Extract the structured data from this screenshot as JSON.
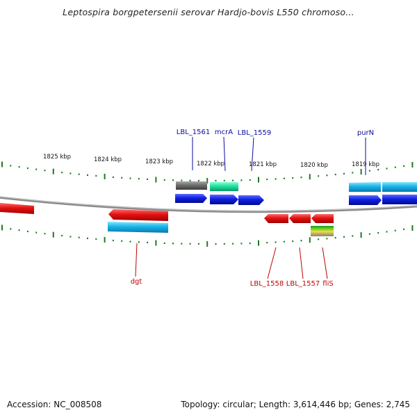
{
  "title": "Leptospira borgpetersenii serovar Hardjo-bovis L550 chromoso...",
  "footer": {
    "accession": "Accession: NC_008508",
    "topology": "Topology: circular; Length: 3,614,446 bp; Genes: 2,745"
  },
  "colors": {
    "backbone": "#8a8a8a",
    "tick": "#1e7a1e",
    "label_top": "#0a0aa0",
    "label_bottom": "#c00000",
    "red_gene": "#e31212",
    "blue_gene": "#1020e0",
    "cyan_gene": "#18b4e8",
    "gray_gene": "#6e6e6e",
    "teal_gene": "#20e0a0"
  },
  "scale_labels": [
    "1825 kbp",
    "1824 kbp",
    "1823 kbp",
    "1822 kbp",
    "1821 kbp",
    "1820 kbp",
    "1819 kbp"
  ],
  "genes_top": [
    {
      "name": "LBL_1561",
      "color": "#1020e0",
      "strand": "forward"
    },
    {
      "name": "mcrA",
      "color": "#20e0a0",
      "strand": "forward"
    },
    {
      "name": "LBL_1559",
      "color": "#1020e0",
      "strand": "forward"
    },
    {
      "name": "purN",
      "color": "#1020e0",
      "strand": "forward"
    }
  ],
  "genes_bottom": [
    {
      "name": "dgt",
      "color": "#e31212",
      "strand": "reverse"
    },
    {
      "name": "LBL_1558",
      "color": "#e31212",
      "strand": "reverse"
    },
    {
      "name": "LBL_1557",
      "color": "#e31212",
      "strand": "reverse"
    },
    {
      "name": "fliS",
      "color": "#e31212",
      "strand": "reverse"
    }
  ]
}
